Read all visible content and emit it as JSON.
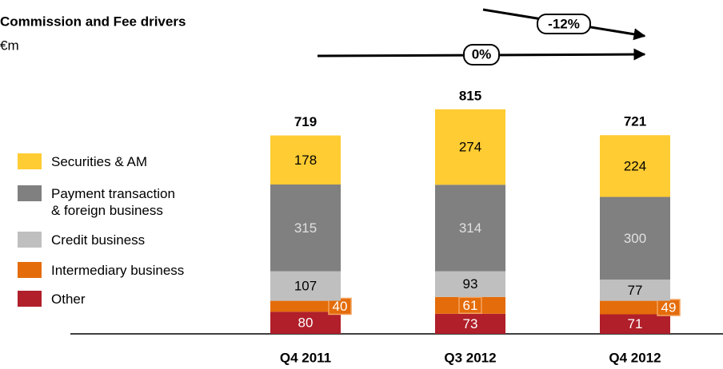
{
  "chart_data": {
    "type": "bar",
    "stacked": true,
    "title": "Commission and Fee drivers",
    "subtitle": "€m",
    "categories": [
      "Q4 2011",
      "Q3 2012",
      "Q4 2012"
    ],
    "series": [
      {
        "name": "Other",
        "color": "#b01f2a",
        "values": [
          80,
          73,
          71
        ]
      },
      {
        "name": "Intermediary business",
        "color": "#e46c0a",
        "values": [
          40,
          61,
          49
        ]
      },
      {
        "name": "Credit business",
        "color": "#bfbfbf",
        "values": [
          107,
          93,
          77
        ]
      },
      {
        "name": "Payment transaction & foreign business",
        "color": "#808080",
        "values": [
          315,
          314,
          300
        ]
      },
      {
        "name": "Securities & AM",
        "color": "#ffcc33",
        "values": [
          178,
          274,
          224
        ]
      }
    ],
    "totals": [
      719,
      815,
      721
    ],
    "annotations": [
      "-12%",
      "0%"
    ],
    "legend": "left"
  }
}
